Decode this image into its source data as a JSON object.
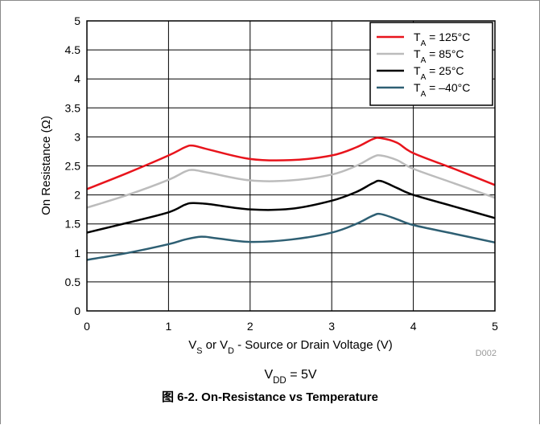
{
  "chart_data": {
    "type": "line",
    "xlabel": {
      "parts": [
        {
          "t": "V"
        },
        {
          "t": "S",
          "sub": true
        },
        {
          "t": " or V"
        },
        {
          "t": "D",
          "sub": true
        },
        {
          "t": " - Source or Drain Voltage (V)"
        }
      ]
    },
    "ylabel": "On Resistance (Ω)",
    "xlim": [
      0,
      5
    ],
    "ylim": [
      0,
      5
    ],
    "xticks": [
      "0",
      "1",
      "2",
      "3",
      "4",
      "5"
    ],
    "yticks": [
      "0",
      "0.5",
      "1",
      "1.5",
      "2",
      "2.5",
      "3",
      "3.5",
      "4",
      "4.5",
      "5"
    ],
    "grid": true,
    "legend_position": "top-right",
    "series": [
      {
        "name": "T_A = 125°C",
        "label_parts": [
          {
            "t": "T"
          },
          {
            "t": "A",
            "sub": true
          },
          {
            "t": " = 125°C"
          }
        ],
        "color": "#e8141c",
        "x": [
          0,
          0.5,
          1,
          1.2,
          1.3,
          1.5,
          2,
          2.5,
          3,
          3.3,
          3.5,
          3.6,
          3.8,
          4,
          4.5,
          5
        ],
        "y": [
          2.1,
          2.38,
          2.68,
          2.82,
          2.85,
          2.78,
          2.62,
          2.6,
          2.68,
          2.82,
          2.96,
          2.98,
          2.9,
          2.72,
          2.45,
          2.17
        ]
      },
      {
        "name": "T_A = 85°C",
        "label_parts": [
          {
            "t": "T"
          },
          {
            "t": "A",
            "sub": true
          },
          {
            "t": " = 85°C"
          }
        ],
        "color": "#bcbcbc",
        "x": [
          0,
          0.5,
          1,
          1.2,
          1.3,
          1.5,
          2,
          2.5,
          3,
          3.3,
          3.5,
          3.6,
          3.8,
          4,
          4.5,
          5
        ],
        "y": [
          1.78,
          2.0,
          2.26,
          2.4,
          2.43,
          2.38,
          2.25,
          2.25,
          2.35,
          2.5,
          2.65,
          2.68,
          2.6,
          2.45,
          2.2,
          1.95
        ]
      },
      {
        "name": "T_A = 25°C",
        "label_parts": [
          {
            "t": "T"
          },
          {
            "t": "A",
            "sub": true
          },
          {
            "t": " = 25°C"
          }
        ],
        "color": "#000000",
        "x": [
          0,
          0.5,
          1,
          1.2,
          1.3,
          1.5,
          2,
          2.5,
          3,
          3.3,
          3.5,
          3.6,
          3.8,
          4,
          4.5,
          5
        ],
        "y": [
          1.35,
          1.52,
          1.7,
          1.83,
          1.86,
          1.84,
          1.75,
          1.76,
          1.9,
          2.05,
          2.2,
          2.24,
          2.12,
          2.0,
          1.8,
          1.6
        ]
      },
      {
        "name": "T_A = −40°C",
        "label_parts": [
          {
            "t": "T"
          },
          {
            "t": "A",
            "sub": true
          },
          {
            "t": " = –40°C"
          }
        ],
        "color": "#2e5f73",
        "x": [
          0,
          0.5,
          1,
          1.2,
          1.4,
          1.6,
          2,
          2.5,
          3,
          3.3,
          3.5,
          3.6,
          3.8,
          4,
          4.5,
          5
        ],
        "y": [
          0.88,
          1.0,
          1.15,
          1.23,
          1.28,
          1.25,
          1.19,
          1.23,
          1.35,
          1.5,
          1.64,
          1.67,
          1.58,
          1.48,
          1.33,
          1.18
        ]
      }
    ],
    "code": "D002",
    "condition": {
      "parts": [
        {
          "t": "V"
        },
        {
          "t": "DD",
          "sub": true
        },
        {
          "t": " = 5V"
        }
      ]
    }
  },
  "caption": "图 6-2. On-Resistance vs Temperature"
}
